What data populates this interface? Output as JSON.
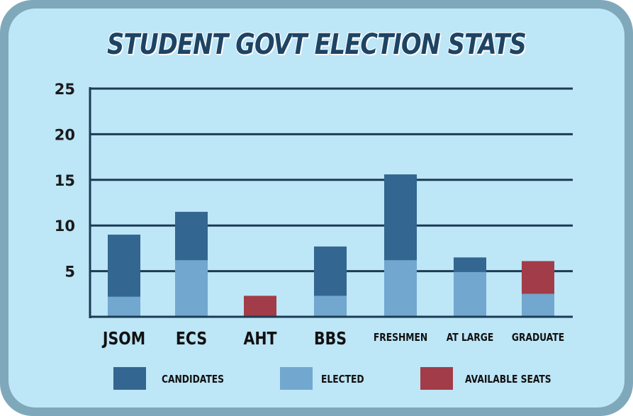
{
  "chart_data": {
    "type": "bar",
    "title": "STUDENT GOVT ELECTION STATS",
    "categories": [
      "JSOM",
      "ECS",
      "AHT",
      "BBS",
      "FRESHMEN",
      "AT LARGE",
      "GRADUATE"
    ],
    "series": [
      {
        "name": "CANDIDATES",
        "color": "#336690",
        "values": [
          9,
          11.5,
          0,
          7.7,
          15.6,
          6.5,
          0
        ]
      },
      {
        "name": "ELECTED",
        "color": "#72a7cf",
        "values": [
          2.2,
          6.2,
          0,
          2.3,
          6.2,
          4.9,
          2.5
        ]
      },
      {
        "name": "AVAILABLE SEATS",
        "color": "#a23c48",
        "values": [
          0,
          0,
          2.3,
          0,
          0,
          0,
          3.6
        ]
      }
    ],
    "yticks": [
      5,
      10,
      15,
      20,
      25
    ],
    "ylim": [
      0,
      25
    ],
    "xlabel": "",
    "ylabel": "",
    "grid": true,
    "legend_position": "bottom"
  }
}
